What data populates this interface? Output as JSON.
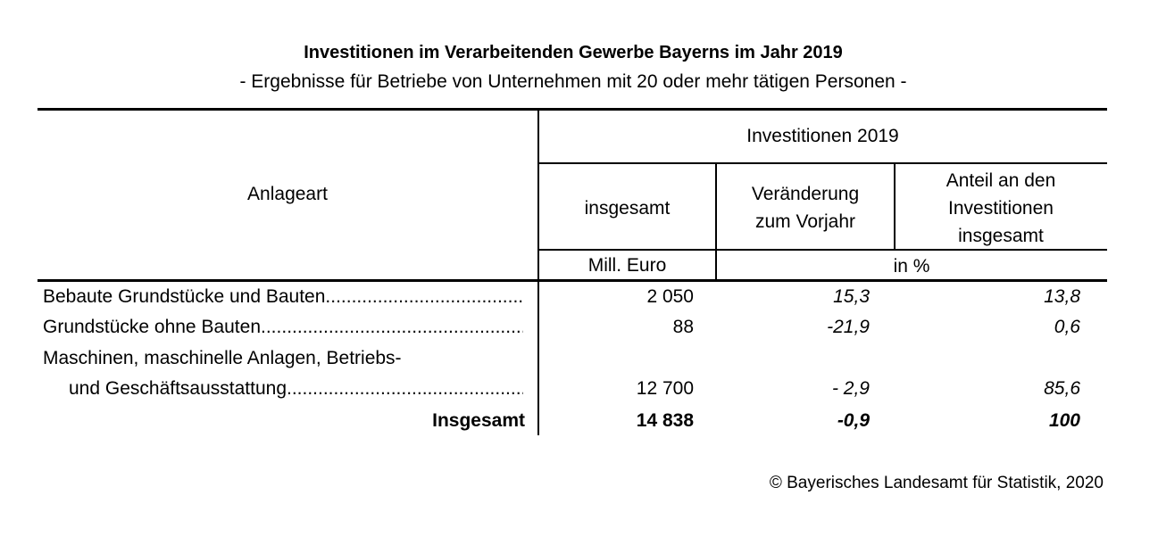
{
  "header": {
    "title": "Investitionen im Verarbeitenden Gewerbe Bayerns im Jahr 2019",
    "subtitle": "- Ergebnisse für Betriebe von Unternehmen mit 20 oder mehr tätigen Personen -"
  },
  "table": {
    "stub_header": "Anlageart",
    "group_header": "Investitionen 2019",
    "columns": [
      {
        "label": "insgesamt",
        "unit": "Mill. Euro"
      },
      {
        "label_line1": "Veränderung",
        "label_line2": "zum Vorjahr"
      },
      {
        "label_line1": "Anteil an den",
        "label_line2": "Investitionen",
        "label_line3": "insgesamt"
      }
    ],
    "shared_unit": "in %",
    "rows": [
      {
        "label": "Bebaute Grundstücke und Bauten",
        "total": "2 050",
        "change": "15,3",
        "share": "13,8"
      },
      {
        "label": "Grundstücke ohne Bauten",
        "total": "88",
        "change": "-21,9",
        "share": "0,6"
      },
      {
        "label_line1": "Maschinen, maschinelle Anlagen, Betriebs-",
        "label_line2": "und Geschäftsausstattung",
        "total": "12 700",
        "change": "- 2,9",
        "share": "85,6"
      },
      {
        "label": "Insgesamt",
        "total": "14 838",
        "change": "-0,9",
        "share": "100"
      }
    ]
  },
  "footer": {
    "source": "© Bayerisches Landesamt für Statistik, 2020"
  }
}
